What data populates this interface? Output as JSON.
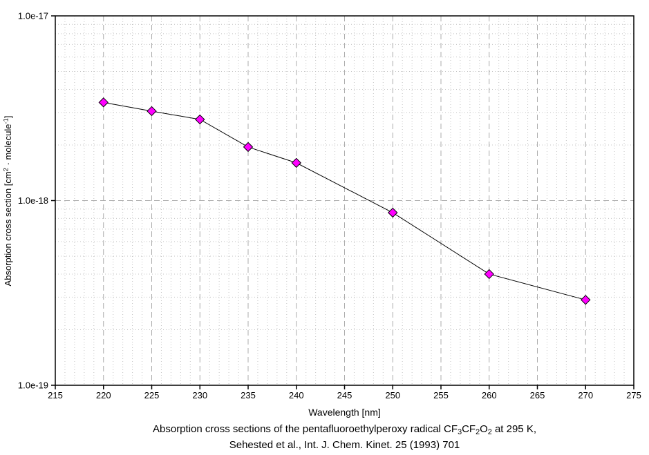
{
  "chart_data": {
    "type": "line",
    "title": "",
    "x_label": "Wavelength [nm]",
    "y_label": "Absorption cross section [cm² · molecule⁻¹]",
    "y_label_parts": [
      {
        "t": "Absorption cross section [cm"
      },
      {
        "t": "2",
        "sup": true
      },
      {
        "t": " · molecule"
      },
      {
        "t": "-1",
        "sup": true
      },
      {
        "t": "]"
      }
    ],
    "x": [
      220,
      225,
      230,
      235,
      240,
      250,
      260,
      270
    ],
    "y": [
      3.4e-18,
      3.05e-18,
      2.75e-18,
      1.95e-18,
      1.6e-18,
      8.6e-19,
      4e-19,
      2.9e-19
    ],
    "xlim": [
      215,
      275
    ],
    "ylim": [
      1e-19,
      1e-17
    ],
    "y_scale": "log",
    "x_scale": "linear",
    "x_major_tick_step": 5,
    "x_minor_tick_step": 1,
    "x_tick_labels": [
      "215",
      "220",
      "225",
      "230",
      "235",
      "240",
      "245",
      "250",
      "255",
      "260",
      "265",
      "270",
      "275"
    ],
    "y_ticks": [
      {
        "value": 1e-17,
        "label": "1.0e-17"
      },
      {
        "value": 1e-18,
        "label": "1.0e-18"
      },
      {
        "value": 1e-19,
        "label": "1.0e-19"
      }
    ],
    "grid": {
      "major_style": "dashed",
      "minor_style": "dotted",
      "visible": true
    },
    "legend": {
      "visible": false
    },
    "marker": {
      "shape": "diamond",
      "size": 13
    },
    "colors": {
      "marker_fill": "#ff00ff",
      "marker_edge": "#000000",
      "line": "#000000",
      "grid_major": "#ababab",
      "grid_minor": "#c3c3c3",
      "axis": "#000000",
      "text": "#000000",
      "background": "#ffffff"
    }
  },
  "caption": {
    "line1": "Absorption cross sections of the pentafluoroethylperoxy radical CF₃CF₂O₂ at 295 K,",
    "line1_parts": [
      {
        "t": "Absorption cross sections of the pentafluoroethylperoxy radical CF"
      },
      {
        "t": "3",
        "sub": true
      },
      {
        "t": "CF"
      },
      {
        "t": "2",
        "sub": true
      },
      {
        "t": "O"
      },
      {
        "t": "2",
        "sub": true
      },
      {
        "t": " at 295 K,"
      }
    ],
    "line2": "Sehested et al., Int. J. Chem. Kinet. 25 (1993) 701"
  }
}
